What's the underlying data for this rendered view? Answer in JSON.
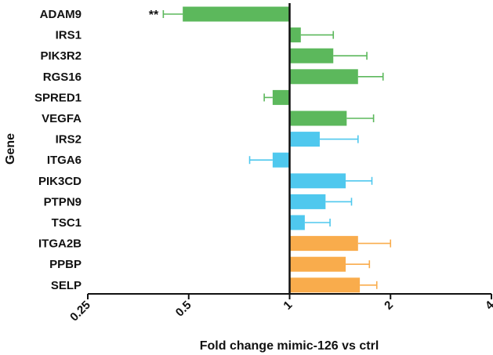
{
  "chart_data": {
    "type": "bar",
    "orientation": "horizontal",
    "xlabel": "Fold change mimic-126 vs ctrl",
    "ylabel": "Gene",
    "x_scale": "log2",
    "xlim": [
      0.25,
      4
    ],
    "x_ticks": [
      "0.25",
      "0.5",
      "1",
      "2",
      "4"
    ],
    "x_tick_values": [
      0.25,
      0.5,
      1,
      2,
      4
    ],
    "grid": false,
    "legend": "none",
    "baseline": 1,
    "categories": [
      "ADAM9",
      "IRS1",
      "PIK3R2",
      "RGS16",
      "SPRED1",
      "VEGFA",
      "IRS2",
      "ITGA6",
      "PIK3CD",
      "PTPN9",
      "TSC1",
      "ITGA2B",
      "PPBP",
      "SELP"
    ],
    "values": [
      0.48,
      1.08,
      1.35,
      1.6,
      0.89,
      1.48,
      1.23,
      0.89,
      1.47,
      1.28,
      1.11,
      1.6,
      1.47,
      1.62
    ],
    "error_upper": [
      0.42,
      1.35,
      1.7,
      1.9,
      0.84,
      1.78,
      1.6,
      0.76,
      1.76,
      1.53,
      1.32,
      2.0,
      1.73,
      1.82
    ],
    "group_index": [
      0,
      0,
      0,
      0,
      0,
      0,
      1,
      1,
      1,
      1,
      1,
      2,
      2,
      2
    ],
    "group_colors": [
      "#5cb85c",
      "#4fc8ee",
      "#f9ac4c"
    ],
    "annotations": [
      {
        "category": "ADAM9",
        "text": "**"
      }
    ]
  }
}
